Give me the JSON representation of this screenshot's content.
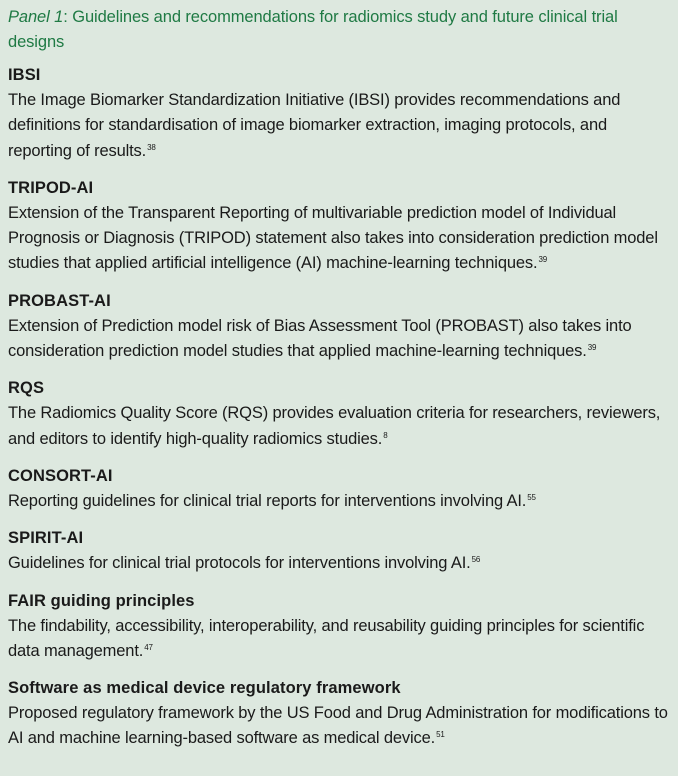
{
  "panel": {
    "label": "Panel 1",
    "title": ": Guidelines and recommendations for radiomics study and future clinical trial designs"
  },
  "colors": {
    "background": "#dde8df",
    "title": "#1f7a44",
    "text": "#1a1a1a"
  },
  "entries": [
    {
      "name": "IBSI",
      "description": "The Image Biomarker Standardization Initiative (IBSI) provides recommendations and definitions for standardisation of image biomarker extraction, imaging protocols, and reporting of results.",
      "ref": "38"
    },
    {
      "name": "TRIPOD-AI",
      "description": "Extension of the Transparent Reporting of multivariable prediction model of Individual Prognosis or Diagnosis (TRIPOD) statement also takes into consideration prediction model studies that applied artificial intelligence (AI) machine-learning techniques.",
      "ref": "39"
    },
    {
      "name": "PROBAST-AI",
      "description": "Extension of Prediction model risk of Bias Assessment Tool (PROBAST) also takes into consideration prediction model studies that applied machine-learning techniques.",
      "ref": "39"
    },
    {
      "name": "RQS",
      "description": "The Radiomics Quality Score (RQS) provides evaluation criteria for researchers, reviewers, and editors to identify high-quality radiomics studies.",
      "ref": "8"
    },
    {
      "name": "CONSORT-AI",
      "description": "Reporting guidelines for clinical trial reports for interventions involving AI.",
      "ref": "55"
    },
    {
      "name": "SPIRIT-AI",
      "description": "Guidelines for clinical trial protocols for interventions involving AI.",
      "ref": "56"
    },
    {
      "name": "FAIR guiding principles",
      "description": "The findability, accessibility, interoperability, and reusability guiding principles for scientific data management.",
      "ref": "47"
    },
    {
      "name": "Software as medical device regulatory framework",
      "description": "Proposed regulatory framework by the US Food and Drug Administration for modifications to AI and machine learning-based software as medical device.",
      "ref": "51"
    }
  ]
}
